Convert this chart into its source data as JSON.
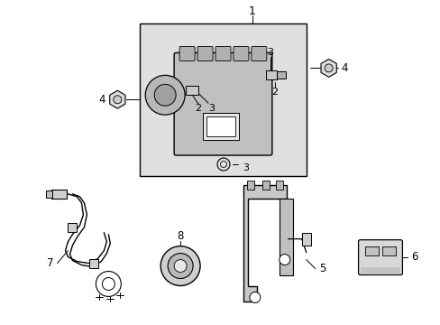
{
  "bg_color": "#ffffff",
  "box_bg": "#e0e0e0",
  "line_color": "#000000",
  "figsize": [
    4.89,
    3.6
  ],
  "dpi": 100
}
